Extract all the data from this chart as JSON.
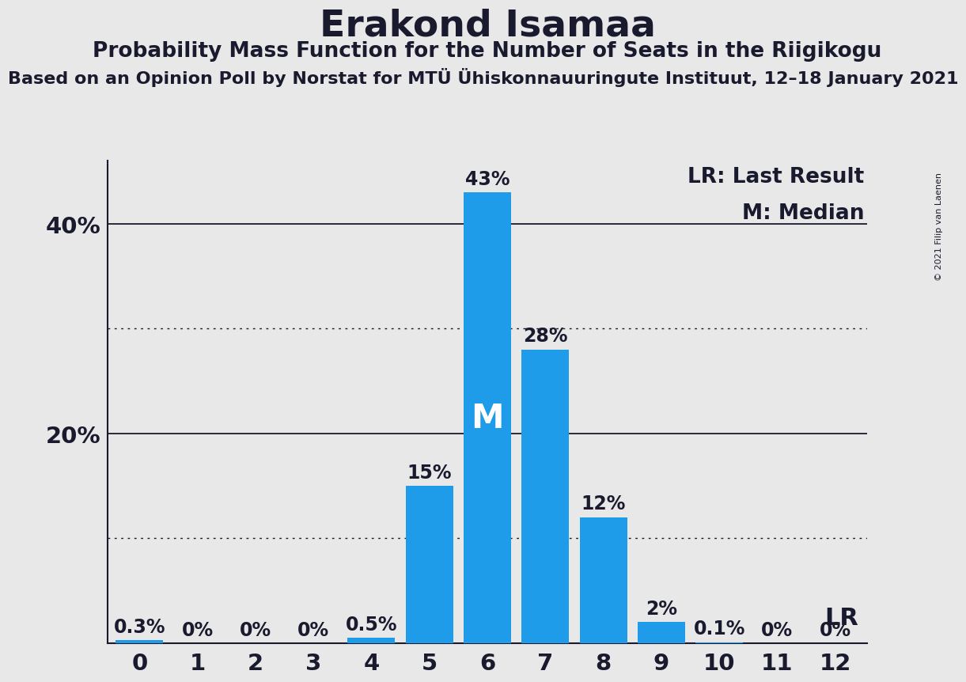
{
  "title": "Erakond Isamaa",
  "subtitle": "Probability Mass Function for the Number of Seats in the Riigikogu",
  "sub_subtitle": "Based on an Opinion Poll by Norstat for MTÜ Ühiskonnauuringute Instituut, 12–18 January 2021",
  "copyright": "© 2021 Filip van Laenen",
  "x_values": [
    0,
    1,
    2,
    3,
    4,
    5,
    6,
    7,
    8,
    9,
    10,
    11,
    12
  ],
  "y_values": [
    0.3,
    0.0,
    0.0,
    0.0,
    0.5,
    15.0,
    43.0,
    28.0,
    12.0,
    2.0,
    0.1,
    0.0,
    0.0
  ],
  "bar_color": "#1E9BE9",
  "background_color": "#E8E8E8",
  "text_color": "#1a1a2e",
  "median_seat": 6,
  "last_result_seat": 12,
  "legend_lr_text": "LR: Last Result",
  "legend_m_text": "M: Median",
  "lr_label": "LR",
  "median_label": "M",
  "ylim": [
    0,
    46
  ],
  "dotted_lines": [
    10,
    30
  ],
  "solid_lines": [
    20,
    40
  ],
  "bar_label_fontsize": 17,
  "title_fontsize": 34,
  "subtitle_fontsize": 19,
  "sub_subtitle_fontsize": 16,
  "axis_label_fontsize": 21,
  "legend_fontsize": 19,
  "median_fontsize": 30
}
